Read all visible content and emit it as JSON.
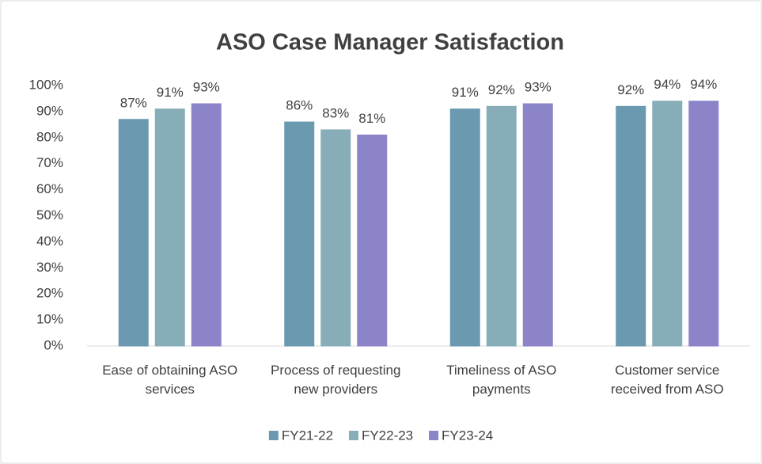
{
  "chart_data": {
    "type": "bar",
    "title": "ASO Case Manager Satisfaction",
    "categories": [
      "Ease of obtaining ASO services",
      "Process of requesting new providers",
      "Timeliness of ASO payments",
      "Customer service received from ASO"
    ],
    "series": [
      {
        "name": "FY21-22",
        "color": "#6a99b0",
        "values": [
          87,
          86,
          91,
          92
        ],
        "value_labels": [
          "87%",
          "86%",
          "91%",
          "92%"
        ]
      },
      {
        "name": "FY22-23",
        "color": "#87adb8",
        "values": [
          91,
          83,
          92,
          94
        ],
        "value_labels": [
          "91%",
          "83%",
          "92%",
          "94%"
        ]
      },
      {
        "name": "FY23-24",
        "color": "#8b84c9",
        "values": [
          93,
          81,
          93,
          94
        ],
        "value_labels": [
          "93%",
          "81%",
          "93%",
          "94%"
        ]
      }
    ],
    "ylim": [
      0,
      100
    ],
    "yticks": [
      {
        "value": 0,
        "label": "0%"
      },
      {
        "value": 10,
        "label": "10%"
      },
      {
        "value": 20,
        "label": "20%"
      },
      {
        "value": 30,
        "label": "30%"
      },
      {
        "value": 40,
        "label": "40%"
      },
      {
        "value": 50,
        "label": "50%"
      },
      {
        "value": 60,
        "label": "60%"
      },
      {
        "value": 70,
        "label": "70%"
      },
      {
        "value": 80,
        "label": "80%"
      },
      {
        "value": 90,
        "label": "90%"
      },
      {
        "value": 100,
        "label": "100%"
      }
    ],
    "grid": false,
    "legend": "bottom"
  }
}
